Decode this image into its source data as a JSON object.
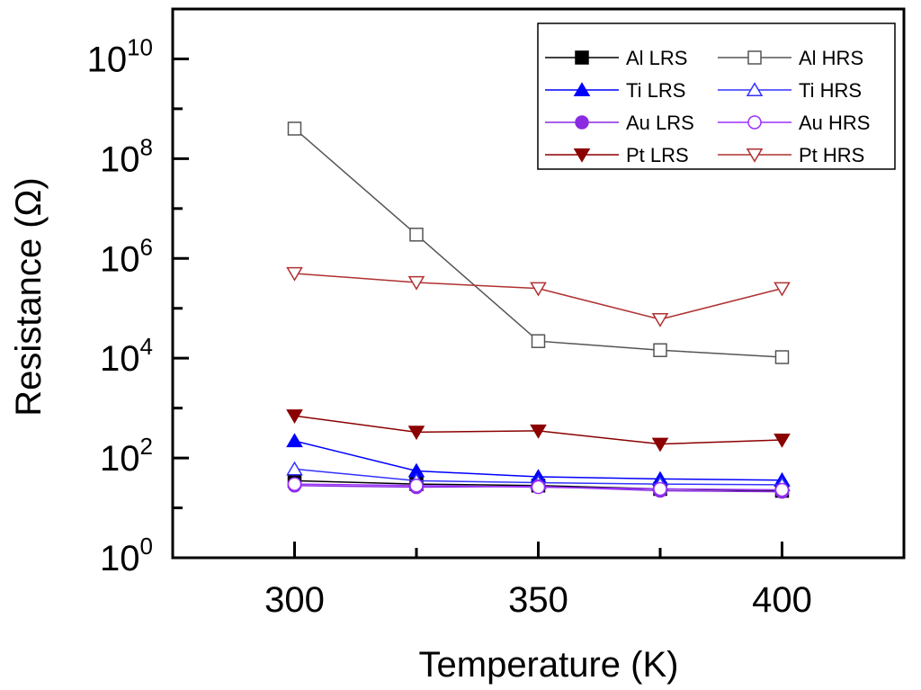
{
  "chart_data": {
    "type": "line",
    "x_scale": "linear",
    "y_scale": "log",
    "xlabel": "Temperature (K)",
    "ylabel": "Resistance (Ω)",
    "ylabel_main": "Resistance (",
    "ylabel_omega": "Ω",
    "ylabel_close": ")",
    "xlim": [
      275,
      425
    ],
    "ylim_exponent": [
      0,
      11
    ],
    "x_ticks": [
      300,
      350,
      400
    ],
    "x_tick_labels": [
      "300",
      "350",
      "400"
    ],
    "y_tick_exponents": [
      0,
      2,
      4,
      6,
      8,
      10
    ],
    "y_tick_base": "10",
    "y_tick_sup": [
      "0",
      "2",
      "4",
      "6",
      "8",
      "10"
    ],
    "legend_position": "top-right",
    "x": [
      300,
      325,
      350,
      375,
      400
    ],
    "series": [
      {
        "name": "Al LRS",
        "color": "#000000",
        "marker": "square",
        "filled": true,
        "values": [
          35,
          30,
          28,
          24,
          22
        ]
      },
      {
        "name": "Al HRS",
        "color": "#555555",
        "marker": "square",
        "filled": false,
        "values": [
          400000000,
          3000000,
          22000,
          14500,
          10500
        ]
      },
      {
        "name": "Ti LRS",
        "color": "#0000ff",
        "marker": "triangle-up",
        "filled": true,
        "values": [
          220,
          55,
          42,
          38,
          36
        ]
      },
      {
        "name": "Ti HRS",
        "color": "#3333ff",
        "marker": "triangle-up",
        "filled": false,
        "values": [
          60,
          35,
          32,
          30,
          29
        ]
      },
      {
        "name": "Au LRS",
        "color": "#8a2be2",
        "marker": "circle",
        "filled": true,
        "values": [
          28,
          26,
          27,
          22,
          21
        ]
      },
      {
        "name": "Au HRS",
        "color": "#9b30ff",
        "marker": "circle",
        "filled": false,
        "values": [
          30,
          28,
          26,
          24,
          23
        ]
      },
      {
        "name": "Pt LRS",
        "color": "#8b0000",
        "marker": "triangle-down",
        "filled": true,
        "values": [
          700,
          330,
          350,
          190,
          230
        ]
      },
      {
        "name": "Pt HRS",
        "color": "#b03030",
        "marker": "triangle-down",
        "filled": false,
        "values": [
          500000,
          330000,
          250000,
          60000,
          250000
        ]
      }
    ],
    "legend_layout": [
      [
        "Al LRS",
        "Al HRS"
      ],
      [
        "Ti LRS",
        "Ti HRS"
      ],
      [
        "Au LRS",
        "Au HRS"
      ],
      [
        "Pt LRS",
        "Pt HRS"
      ]
    ]
  }
}
